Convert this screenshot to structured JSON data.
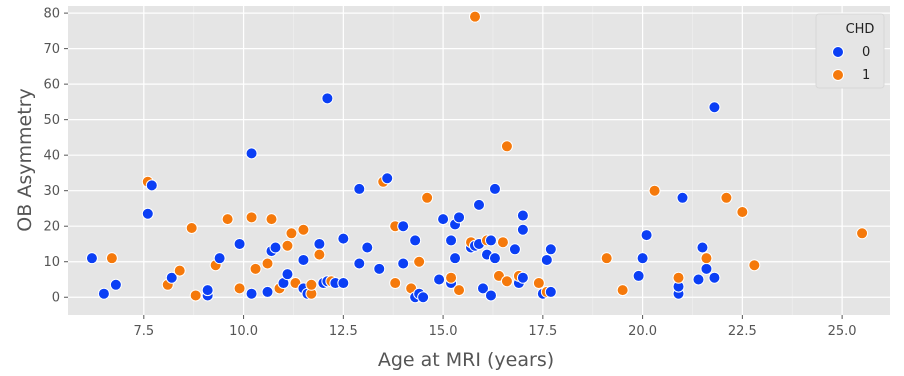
{
  "chart_data": {
    "type": "scatter",
    "title": "",
    "xlabel": "Age at MRI (years)",
    "ylabel": "OB Asymmetry",
    "xlim": [
      5.6,
      26.2
    ],
    "ylim": [
      -5,
      82
    ],
    "xticks": [
      7.5,
      10.0,
      12.5,
      15.0,
      17.5,
      20.0,
      22.5,
      25.0
    ],
    "xtick_labels": [
      "7.5",
      "10.0",
      "12.5",
      "15.0",
      "17.5",
      "20.0",
      "22.5",
      "25.0"
    ],
    "yticks": [
      0,
      10,
      20,
      30,
      40,
      50,
      60,
      70,
      80
    ],
    "ytick_labels": [
      "0",
      "10",
      "20",
      "30",
      "40",
      "50",
      "60",
      "70",
      "80"
    ],
    "grid": true,
    "legend": {
      "title": "CHD",
      "position": "top-right"
    },
    "series": [
      {
        "name": "0",
        "color": "#0b3ff5",
        "points": [
          [
            6.2,
            11
          ],
          [
            6.5,
            1
          ],
          [
            6.8,
            3.5
          ],
          [
            7.6,
            23.5
          ],
          [
            7.7,
            31.5
          ],
          [
            8.2,
            5.5
          ],
          [
            9.1,
            0.5
          ],
          [
            9.1,
            2
          ],
          [
            9.4,
            11
          ],
          [
            9.9,
            15
          ],
          [
            10.2,
            1
          ],
          [
            10.2,
            40.5
          ],
          [
            10.6,
            1.5
          ],
          [
            10.7,
            13
          ],
          [
            10.8,
            14
          ],
          [
            11.0,
            4
          ],
          [
            11.1,
            6.5
          ],
          [
            11.5,
            10.5
          ],
          [
            11.5,
            2.5
          ],
          [
            11.6,
            1
          ],
          [
            11.9,
            15
          ],
          [
            12.0,
            4
          ],
          [
            12.1,
            56
          ],
          [
            12.1,
            4.5
          ],
          [
            12.3,
            4
          ],
          [
            12.5,
            16.5
          ],
          [
            12.5,
            4
          ],
          [
            12.9,
            30.5
          ],
          [
            12.9,
            9.5
          ],
          [
            13.1,
            14
          ],
          [
            13.4,
            8
          ],
          [
            13.6,
            33.5
          ],
          [
            14.0,
            20
          ],
          [
            14.0,
            9.5
          ],
          [
            14.3,
            0
          ],
          [
            14.3,
            16
          ],
          [
            14.4,
            1
          ],
          [
            14.5,
            0
          ],
          [
            14.9,
            5
          ],
          [
            15.0,
            22
          ],
          [
            15.2,
            4
          ],
          [
            15.2,
            16
          ],
          [
            15.3,
            11
          ],
          [
            15.3,
            20.5
          ],
          [
            15.4,
            22.5
          ],
          [
            15.7,
            14
          ],
          [
            15.8,
            14.5
          ],
          [
            15.9,
            15
          ],
          [
            15.9,
            26
          ],
          [
            16.0,
            2.5
          ],
          [
            16.1,
            12
          ],
          [
            16.2,
            16
          ],
          [
            16.2,
            0.5
          ],
          [
            16.3,
            11
          ],
          [
            16.3,
            30.5
          ],
          [
            16.8,
            13.5
          ],
          [
            16.9,
            4
          ],
          [
            17.0,
            19
          ],
          [
            17.0,
            23
          ],
          [
            17.0,
            5.5
          ],
          [
            17.5,
            1
          ],
          [
            17.6,
            10.5
          ],
          [
            17.7,
            13.5
          ],
          [
            17.7,
            1.5
          ],
          [
            19.9,
            6
          ],
          [
            20.0,
            11
          ],
          [
            20.1,
            17.5
          ],
          [
            20.9,
            1
          ],
          [
            20.9,
            3
          ],
          [
            21.0,
            28
          ],
          [
            21.4,
            5
          ],
          [
            21.5,
            14
          ],
          [
            21.6,
            8
          ],
          [
            21.8,
            53.5
          ],
          [
            21.8,
            5.5
          ]
        ]
      },
      {
        "name": "1",
        "color": "#f5790b",
        "points": [
          [
            6.7,
            11
          ],
          [
            7.6,
            32.5
          ],
          [
            8.1,
            3.5
          ],
          [
            8.4,
            7.5
          ],
          [
            8.7,
            19.5
          ],
          [
            8.8,
            0.5
          ],
          [
            9.3,
            9
          ],
          [
            9.6,
            22
          ],
          [
            9.9,
            2.5
          ],
          [
            10.2,
            22.5
          ],
          [
            10.3,
            8
          ],
          [
            10.6,
            9.5
          ],
          [
            10.7,
            22
          ],
          [
            10.9,
            2.5
          ],
          [
            11.1,
            14.5
          ],
          [
            11.2,
            18
          ],
          [
            11.3,
            4
          ],
          [
            11.5,
            19
          ],
          [
            11.7,
            1
          ],
          [
            11.7,
            3.5
          ],
          [
            11.9,
            12
          ],
          [
            12.2,
            4.5
          ],
          [
            13.5,
            32.5
          ],
          [
            13.8,
            20
          ],
          [
            13.8,
            4
          ],
          [
            14.2,
            2.5
          ],
          [
            14.4,
            10
          ],
          [
            14.6,
            28
          ],
          [
            15.2,
            5.5
          ],
          [
            15.4,
            2
          ],
          [
            15.7,
            15.5
          ],
          [
            15.8,
            79
          ],
          [
            16.1,
            16
          ],
          [
            16.4,
            6
          ],
          [
            16.5,
            15.5
          ],
          [
            16.6,
            42.5
          ],
          [
            16.6,
            4.5
          ],
          [
            16.9,
            6
          ],
          [
            17.4,
            4
          ],
          [
            17.6,
            1.5
          ],
          [
            19.1,
            11
          ],
          [
            19.5,
            2
          ],
          [
            20.3,
            30
          ],
          [
            20.9,
            5.5
          ],
          [
            21.6,
            11
          ],
          [
            22.1,
            28
          ],
          [
            22.5,
            24
          ],
          [
            22.8,
            9
          ],
          [
            25.5,
            18
          ]
        ]
      }
    ]
  }
}
